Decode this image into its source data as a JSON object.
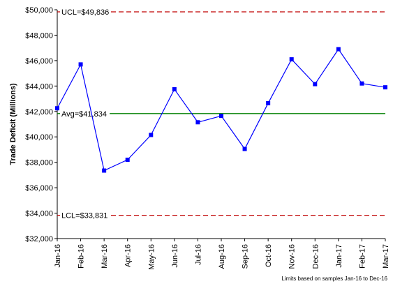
{
  "chart_data": {
    "type": "line",
    "ylabel": "Trade Deficit (Millions)",
    "xlabel": "",
    "categories": [
      "Jan-16",
      "Feb-16",
      "Mar-16",
      "Apr-16",
      "May-16",
      "Jun-16",
      "Jul-16",
      "Aug-16",
      "Sep-16",
      "Oct-16",
      "Nov-16",
      "Dec-16",
      "Jan-17",
      "Feb-17",
      "Mar-17"
    ],
    "series": [
      {
        "values": [
          42250,
          45700,
          37350,
          38200,
          40150,
          43750,
          41150,
          41650,
          39050,
          42650,
          46100,
          44150,
          46900,
          44200,
          43900
        ]
      }
    ],
    "ylim": [
      32000,
      50000
    ],
    "yticks": [
      32000,
      34000,
      36000,
      38000,
      40000,
      42000,
      44000,
      46000,
      48000,
      50000
    ],
    "ytick_labels": [
      "$32,000",
      "$34,000",
      "$36,000",
      "$38,000",
      "$40,000",
      "$42,000",
      "$44,000",
      "$46,000",
      "$48,000",
      "$50,000"
    ],
    "reference_lines": [
      {
        "label": "UCL=$49,836",
        "value": 49836,
        "color": "#c00000",
        "style": "dashed"
      },
      {
        "label": "Avg=$41,834",
        "value": 41834,
        "color": "#008000",
        "style": "solid"
      },
      {
        "label": "LCL=$33,831",
        "value": 33831,
        "color": "#c00000",
        "style": "dashed"
      }
    ],
    "footnote": "Limits based on samples Jan-16 to Dec-16",
    "series_color": "#0000ff",
    "grid": false
  }
}
